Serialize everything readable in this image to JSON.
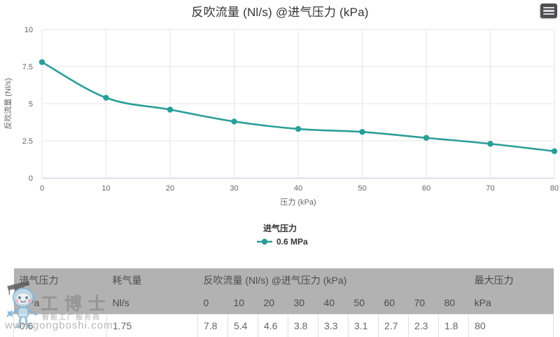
{
  "title": "反吹流量 (Nl/s) @进气压力 (kPa)",
  "export_menu": {
    "icon": "hamburger-menu"
  },
  "chart_data": {
    "type": "line",
    "title": "反吹流量 (Nl/s) @进气压力 (kPa)",
    "x": [
      0,
      10,
      20,
      30,
      40,
      50,
      60,
      70,
      80
    ],
    "series": [
      {
        "name": "0.6 MPa",
        "values": [
          7.8,
          5.4,
          4.6,
          3.8,
          3.3,
          3.1,
          2.7,
          2.3,
          1.8
        ]
      }
    ],
    "xlabel": "压力 (kPa)",
    "ylabel": "反吹流量 (Nl/s)",
    "xlim": [
      0,
      80
    ],
    "ylim": [
      0,
      10
    ],
    "xticks": [
      0,
      10,
      20,
      30,
      40,
      50,
      60,
      70,
      80
    ],
    "yticks": [
      0,
      2.5,
      5,
      7.5,
      10
    ],
    "grid": true,
    "legend_position": "bottom",
    "legend_title": "进气压力",
    "line_color": "#2b9e98",
    "smooth": true
  },
  "legend": {
    "title": "进气压力",
    "items": [
      {
        "label": "0.6 MPa",
        "color": "#2b9e98"
      }
    ]
  },
  "table": {
    "header_row1": [
      "进气压力",
      "耗气量",
      "反吹流量 (Nl/s) @进气压力 (kPa)",
      "最大压力"
    ],
    "header_row2": [
      "MPa",
      "Nl/s",
      "0",
      "10",
      "20",
      "30",
      "40",
      "50",
      "60",
      "70",
      "80",
      "kPa"
    ],
    "rows": [
      [
        "0.6",
        "1.75",
        "7.8",
        "5.4",
        "4.6",
        "3.8",
        "3.3",
        "3.1",
        "2.7",
        "2.3",
        "1.8",
        "80"
      ]
    ]
  },
  "watermark": {
    "brand": "工博士",
    "tagline": "智能工厂服务商",
    "url": "www.gongboshi.com"
  },
  "colors": {
    "series_teal": "#2b9e98",
    "grid": "#e6e6e6",
    "axis_line": "#ccd6eb",
    "axis_text": "#666666",
    "title_text": "#333333",
    "table_header_bg": "#b2b2b2",
    "table_header_text": "#4d4d4d",
    "table_cell_text": "#666666"
  }
}
